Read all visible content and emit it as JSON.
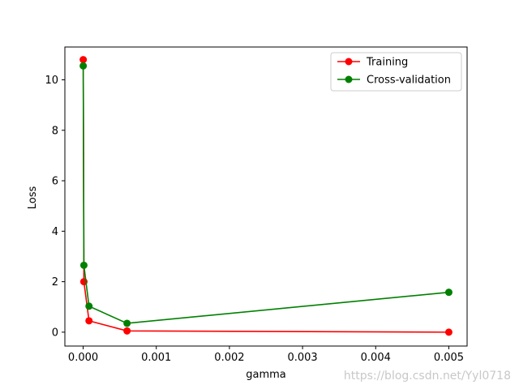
{
  "chart_data": {
    "type": "line",
    "title": "",
    "xlabel": "gamma",
    "ylabel": "Loss",
    "xlim": [
      -0.00025,
      0.00525
    ],
    "ylim": [
      -0.55,
      11.3
    ],
    "xticks": [
      0.0,
      0.001,
      0.002,
      0.003,
      0.004,
      0.005
    ],
    "xtick_labels": [
      "0.000",
      "0.001",
      "0.002",
      "0.003",
      "0.004",
      "0.005"
    ],
    "yticks": [
      0,
      2,
      4,
      6,
      8,
      10
    ],
    "ytick_labels": [
      "0",
      "2",
      "4",
      "6",
      "8",
      "10"
    ],
    "grid": false,
    "legend_position": "top-right",
    "series": [
      {
        "name": "Training",
        "color": "#ff0000",
        "marker": "circle",
        "x": [
          1e-06,
          1e-05,
          8e-05,
          0.0006,
          0.005
        ],
        "y": [
          10.8,
          2.0,
          0.45,
          0.05,
          0.0
        ]
      },
      {
        "name": "Cross-validation",
        "color": "#008000",
        "marker": "circle",
        "x": [
          1e-06,
          1e-05,
          8e-05,
          0.0006,
          0.005
        ],
        "y": [
          10.55,
          2.65,
          1.03,
          0.35,
          1.58
        ]
      }
    ]
  },
  "watermark": "https://blog.csdn.net/Yyl0718"
}
